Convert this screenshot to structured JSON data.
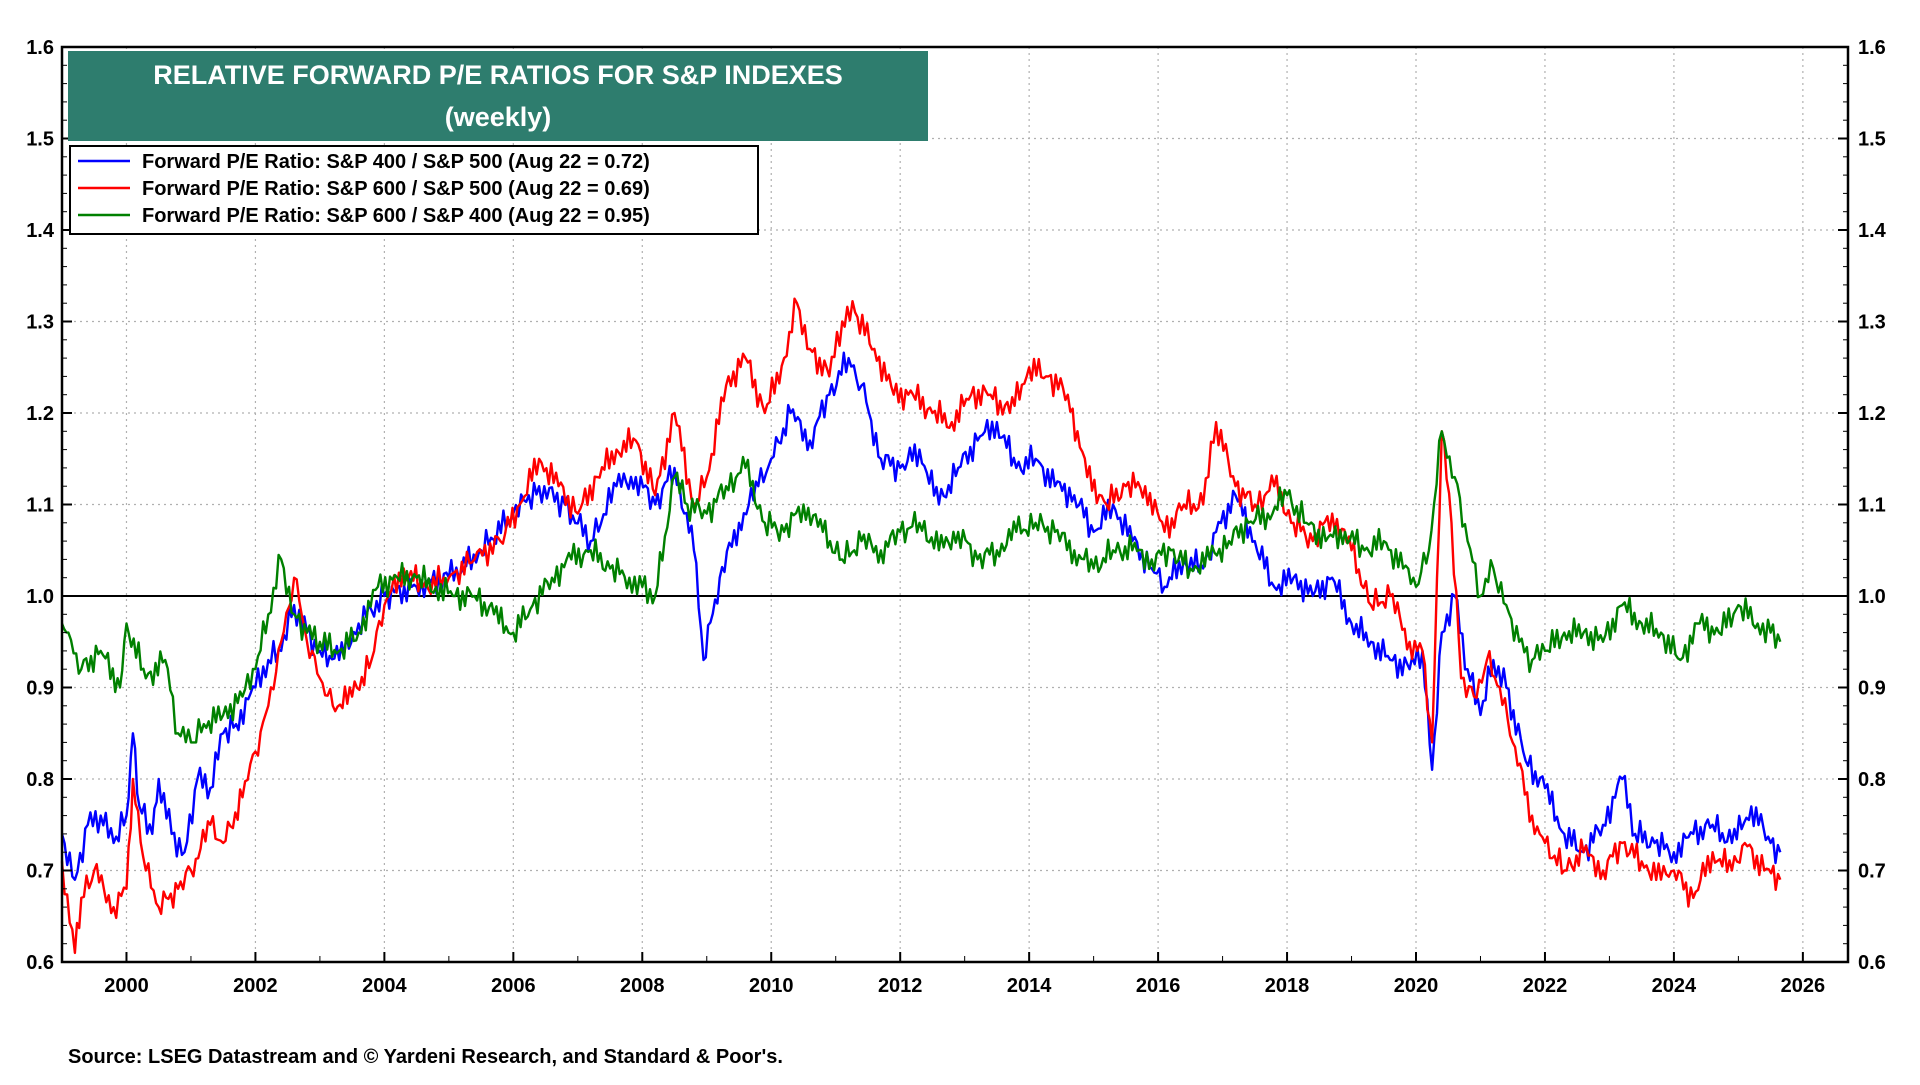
{
  "chart_data": {
    "type": "line",
    "title": "RELATIVE FORWARD P/E RATIOS FOR S&P INDEXES",
    "subtitle": "(weekly)",
    "xlabel": "",
    "ylabel": "",
    "xlim": [
      1999.0,
      2026.7
    ],
    "ylim": [
      0.6,
      1.6
    ],
    "x_ticks": [
      "2000",
      "2002",
      "2004",
      "2006",
      "2008",
      "2010",
      "2012",
      "2014",
      "2016",
      "2018",
      "2020",
      "2022",
      "2024",
      "2026"
    ],
    "y_ticks": [
      "0.6",
      "0.7",
      "0.8",
      "0.9",
      "1.0",
      "1.1",
      "1.2",
      "1.3",
      "1.4",
      "1.5",
      "1.6"
    ],
    "reference_line": 1.0,
    "grid": true,
    "legend_position": "top-left",
    "series": [
      {
        "name": "Forward P/E Ratio: S&P 400 / S&P 500 (Aug 22 = 0.72)",
        "color": "#0000ff",
        "x": [
          1999.0,
          1999.2,
          1999.4,
          1999.6,
          1999.8,
          2000.0,
          2000.1,
          2000.2,
          2000.4,
          2000.5,
          2000.7,
          2000.9,
          2001.1,
          2001.3,
          2001.5,
          2001.7,
          2002.0,
          2002.2,
          2002.4,
          2002.6,
          2002.8,
          2003.0,
          2003.3,
          2003.6,
          2004.0,
          2004.5,
          2005.0,
          2005.5,
          2006.0,
          2006.4,
          2006.8,
          2007.2,
          2007.6,
          2007.9,
          2008.2,
          2008.5,
          2008.8,
          2008.95,
          2009.2,
          2009.5,
          2009.8,
          2010.0,
          2010.3,
          2010.6,
          2010.9,
          2011.2,
          2011.4,
          2011.7,
          2012.0,
          2012.3,
          2012.6,
          2012.9,
          2013.2,
          2013.5,
          2013.8,
          2014.1,
          2014.4,
          2014.7,
          2015.0,
          2015.3,
          2015.6,
          2015.9,
          2016.1,
          2016.4,
          2016.7,
          2016.9,
          2017.2,
          2017.5,
          2017.8,
          2018.1,
          2018.4,
          2018.7,
          2019.0,
          2019.3,
          2019.6,
          2019.9,
          2020.1,
          2020.25,
          2020.4,
          2020.6,
          2020.8,
          2021.0,
          2021.2,
          2021.4,
          2021.7,
          2022.0,
          2022.3,
          2022.6,
          2022.9,
          2023.2,
          2023.4,
          2023.7,
          2024.0,
          2024.3,
          2024.6,
          2024.9,
          2025.2,
          2025.5,
          2025.65
        ],
        "y": [
          0.74,
          0.69,
          0.75,
          0.76,
          0.73,
          0.76,
          0.85,
          0.77,
          0.74,
          0.8,
          0.74,
          0.72,
          0.8,
          0.79,
          0.85,
          0.86,
          0.9,
          0.93,
          0.94,
          0.99,
          0.96,
          0.94,
          0.93,
          0.97,
          1.0,
          1.01,
          1.02,
          1.05,
          1.09,
          1.12,
          1.1,
          1.06,
          1.12,
          1.13,
          1.1,
          1.14,
          1.05,
          0.93,
          1.02,
          1.08,
          1.12,
          1.15,
          1.2,
          1.17,
          1.22,
          1.26,
          1.23,
          1.15,
          1.14,
          1.16,
          1.1,
          1.14,
          1.17,
          1.19,
          1.14,
          1.15,
          1.12,
          1.11,
          1.07,
          1.1,
          1.06,
          1.03,
          1.01,
          1.04,
          1.03,
          1.07,
          1.11,
          1.06,
          1.01,
          1.02,
          1.0,
          1.02,
          0.97,
          0.95,
          0.93,
          0.92,
          0.94,
          0.81,
          0.96,
          1.0,
          0.92,
          0.87,
          0.93,
          0.9,
          0.82,
          0.79,
          0.74,
          0.72,
          0.75,
          0.8,
          0.74,
          0.73,
          0.72,
          0.74,
          0.75,
          0.73,
          0.77,
          0.73,
          0.72
        ]
      },
      {
        "name": "Forward P/E Ratio: S&P 600 / S&P 500 (Aug 22 = 0.69)",
        "color": "#ff0000",
        "x": [
          1999.0,
          1999.2,
          1999.3,
          1999.5,
          1999.8,
          2000.0,
          2000.1,
          2000.3,
          2000.5,
          2000.8,
          2001.0,
          2001.3,
          2001.5,
          2001.8,
          2002.0,
          2002.2,
          2002.4,
          2002.6,
          2002.8,
          2003.0,
          2003.2,
          2003.5,
          2003.8,
          2004.0,
          2004.3,
          2004.6,
          2005.0,
          2005.4,
          2005.8,
          2006.1,
          2006.4,
          2006.7,
          2007.0,
          2007.3,
          2007.6,
          2007.9,
          2008.2,
          2008.5,
          2008.8,
          2009.0,
          2009.3,
          2009.6,
          2009.9,
          2010.2,
          2010.4,
          2010.6,
          2010.9,
          2011.1,
          2011.3,
          2011.6,
          2011.9,
          2012.2,
          2012.5,
          2012.8,
          2013.1,
          2013.4,
          2013.7,
          2014.0,
          2014.3,
          2014.6,
          2014.9,
          2015.2,
          2015.5,
          2015.8,
          2016.1,
          2016.4,
          2016.7,
          2016.9,
          2017.2,
          2017.5,
          2017.8,
          2018.1,
          2018.4,
          2018.7,
          2019.0,
          2019.3,
          2019.6,
          2019.9,
          2020.1,
          2020.25,
          2020.4,
          2020.55,
          2020.7,
          2020.9,
          2021.1,
          2021.3,
          2021.5,
          2021.8,
          2022.0,
          2022.3,
          2022.6,
          2022.9,
          2023.2,
          2023.5,
          2023.8,
          2024.0,
          2024.3,
          2024.6,
          2024.9,
          2025.1,
          2025.4,
          2025.65
        ],
        "y": [
          0.71,
          0.61,
          0.67,
          0.7,
          0.66,
          0.68,
          0.8,
          0.7,
          0.66,
          0.68,
          0.7,
          0.75,
          0.73,
          0.78,
          0.83,
          0.88,
          0.95,
          1.02,
          0.95,
          0.91,
          0.88,
          0.89,
          0.93,
          0.99,
          1.03,
          1.01,
          1.02,
          1.04,
          1.06,
          1.1,
          1.15,
          1.12,
          1.09,
          1.13,
          1.16,
          1.17,
          1.11,
          1.2,
          1.1,
          1.13,
          1.23,
          1.26,
          1.2,
          1.26,
          1.32,
          1.27,
          1.24,
          1.3,
          1.31,
          1.27,
          1.22,
          1.22,
          1.2,
          1.19,
          1.22,
          1.22,
          1.2,
          1.25,
          1.24,
          1.22,
          1.13,
          1.1,
          1.12,
          1.12,
          1.07,
          1.1,
          1.1,
          1.19,
          1.12,
          1.1,
          1.12,
          1.08,
          1.06,
          1.09,
          1.05,
          0.99,
          1.0,
          0.95,
          0.94,
          0.84,
          1.18,
          1.08,
          0.91,
          0.89,
          0.93,
          0.9,
          0.84,
          0.76,
          0.73,
          0.7,
          0.72,
          0.7,
          0.73,
          0.71,
          0.69,
          0.7,
          0.67,
          0.72,
          0.7,
          0.73,
          0.7,
          0.69
        ]
      },
      {
        "name": "Forward P/E Ratio: S&P 600 / S&P 400 (Aug 22 = 0.95)",
        "color": "#008000",
        "x": [
          1999.0,
          1999.1,
          1999.3,
          1999.6,
          1999.9,
          2000.0,
          2000.3,
          2000.6,
          2000.8,
          2001.0,
          2001.2,
          2001.5,
          2001.8,
          2002.0,
          2002.2,
          2002.4,
          2002.6,
          2002.8,
          2003.0,
          2003.3,
          2003.6,
          2003.9,
          2004.2,
          2004.5,
          2004.8,
          2005.1,
          2005.4,
          2005.7,
          2006.0,
          2006.3,
          2006.6,
          2006.9,
          2007.2,
          2007.5,
          2007.8,
          2008.0,
          2008.2,
          2008.5,
          2008.7,
          2009.0,
          2009.3,
          2009.6,
          2009.9,
          2010.2,
          2010.5,
          2010.8,
          2011.1,
          2011.4,
          2011.7,
          2012.0,
          2012.3,
          2012.6,
          2012.9,
          2013.2,
          2013.5,
          2013.8,
          2014.1,
          2014.4,
          2014.7,
          2015.0,
          2015.3,
          2015.6,
          2015.9,
          2016.2,
          2016.5,
          2016.8,
          2017.1,
          2017.4,
          2017.7,
          2018.0,
          2018.3,
          2018.6,
          2018.9,
          2019.2,
          2019.5,
          2019.8,
          2020.0,
          2020.2,
          2020.4,
          2020.6,
          2020.8,
          2021.0,
          2021.2,
          2021.4,
          2021.6,
          2021.8,
          2022.0,
          2022.3,
          2022.6,
          2022.9,
          2023.2,
          2023.5,
          2023.8,
          2024.1,
          2024.4,
          2024.7,
          2025.0,
          2025.3,
          2025.5,
          2025.65
        ],
        "y": [
          0.97,
          0.96,
          0.92,
          0.94,
          0.9,
          0.97,
          0.91,
          0.93,
          0.85,
          0.84,
          0.86,
          0.87,
          0.89,
          0.92,
          0.98,
          1.04,
          0.98,
          0.96,
          0.95,
          0.94,
          0.96,
          1.01,
          1.02,
          1.02,
          1.01,
          1.0,
          1.0,
          0.98,
          0.96,
          0.99,
          1.02,
          1.04,
          1.05,
          1.03,
          1.02,
          1.01,
          1.0,
          1.13,
          1.1,
          1.09,
          1.12,
          1.14,
          1.08,
          1.07,
          1.1,
          1.07,
          1.04,
          1.06,
          1.05,
          1.07,
          1.08,
          1.05,
          1.07,
          1.04,
          1.05,
          1.07,
          1.08,
          1.07,
          1.05,
          1.03,
          1.05,
          1.05,
          1.04,
          1.05,
          1.03,
          1.04,
          1.06,
          1.08,
          1.09,
          1.11,
          1.08,
          1.06,
          1.07,
          1.05,
          1.06,
          1.03,
          1.01,
          1.05,
          1.18,
          1.13,
          1.06,
          1.0,
          1.03,
          0.99,
          0.95,
          0.93,
          0.94,
          0.96,
          0.96,
          0.95,
          0.99,
          0.97,
          0.96,
          0.93,
          0.97,
          0.96,
          0.99,
          0.97,
          0.96,
          0.95
        ]
      }
    ]
  },
  "source": "Source: LSEG Datastream and © Yardeni Research, and Standard & Poor's."
}
